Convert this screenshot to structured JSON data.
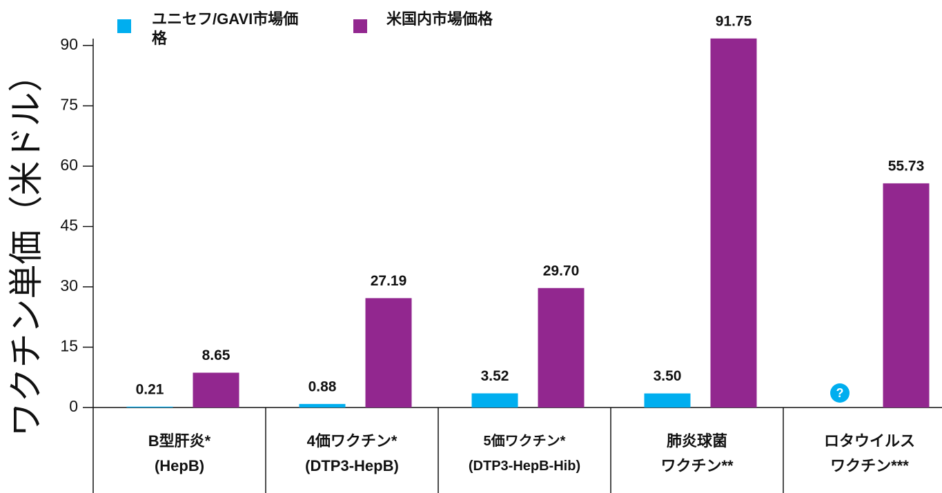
{
  "chart_data": {
    "type": "bar",
    "ylabel": "ワクチン単価（米ドル）",
    "categories": [
      "B型肝炎*\n(HepB)",
      "4価ワクチン*\n(DTP3-HepB)",
      "5価ワクチン*\n(DTP3-HepB-Hib)",
      "肺炎球菌\nワクチン**",
      "ロタウイルス\nワクチン***"
    ],
    "series": [
      {
        "name": "ユニセフ/GAVI市場価格",
        "color": "#00aeef",
        "values": [
          0.21,
          0.88,
          3.52,
          3.5,
          null
        ],
        "value_labels": [
          "0.21",
          "0.88",
          "3.52",
          "3.50",
          "?"
        ]
      },
      {
        "name": "米国内市場価格",
        "color": "#92278f",
        "values": [
          8.65,
          27.19,
          29.7,
          91.75,
          55.73
        ],
        "value_labels": [
          "8.65",
          "27.19",
          "29.70",
          "91.75",
          "55.73"
        ]
      }
    ],
    "ylim": [
      0,
      90
    ],
    "yticks": [
      0,
      15,
      30,
      45,
      60,
      75,
      90
    ],
    "legend": "top-left"
  }
}
